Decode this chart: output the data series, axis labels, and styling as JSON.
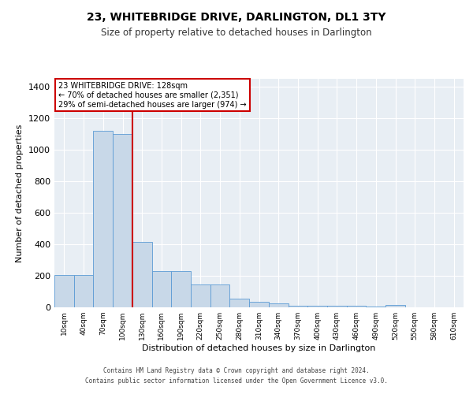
{
  "title": "23, WHITEBRIDGE DRIVE, DARLINGTON, DL1 3TY",
  "subtitle": "Size of property relative to detached houses in Darlington",
  "xlabel": "Distribution of detached houses by size in Darlington",
  "ylabel": "Number of detached properties",
  "categories": [
    "10sqm",
    "40sqm",
    "70sqm",
    "100sqm",
    "130sqm",
    "160sqm",
    "190sqm",
    "220sqm",
    "250sqm",
    "280sqm",
    "310sqm",
    "340sqm",
    "370sqm",
    "400sqm",
    "430sqm",
    "460sqm",
    "490sqm",
    "520sqm",
    "550sqm",
    "580sqm",
    "610sqm"
  ],
  "values": [
    205,
    205,
    1120,
    1100,
    415,
    230,
    230,
    145,
    145,
    55,
    35,
    25,
    10,
    10,
    10,
    10,
    5,
    15,
    0,
    0,
    0
  ],
  "bar_color": "#c8d8e8",
  "bar_edge_color": "#5b9bd5",
  "property_line_color": "#cc0000",
  "annotation_text": "23 WHITEBRIDGE DRIVE: 128sqm\n← 70% of detached houses are smaller (2,351)\n29% of semi-detached houses are larger (974) →",
  "annotation_box_color": "#cc0000",
  "ylim": [
    0,
    1450
  ],
  "yticks": [
    0,
    200,
    400,
    600,
    800,
    1000,
    1200,
    1400
  ],
  "bg_color": "#e8eef4",
  "footer_line1": "Contains HM Land Registry data © Crown copyright and database right 2024.",
  "footer_line2": "Contains public sector information licensed under the Open Government Licence v3.0."
}
